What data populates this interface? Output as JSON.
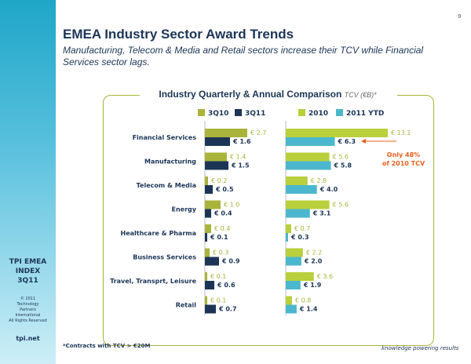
{
  "page_number": "9",
  "title": "EMEA Industry Sector Award Trends",
  "subtitle": "Manufacturing, Telecom & Media and Retail sectors increase their TCV while Financial Services sector lags.",
  "sidebar": {
    "title_lines": [
      "TPI EMEA",
      "INDEX",
      "3Q11"
    ],
    "copyright_lines": [
      "© 2011",
      "Technology",
      "Partners",
      "International",
      "All Rights Reserved"
    ],
    "url": "tpi.net"
  },
  "footnote": "*Contracts with TCV > €20M",
  "tagline": "knowledge powering results",
  "colors": {
    "olive": "#a8b43a",
    "navy": "#1c3557",
    "light_green": "#b9cf3c",
    "cyan": "#4bb7ce"
  },
  "chart_data": [
    {
      "type": "bar",
      "orientation": "horizontal",
      "title": "Industry Quarterly & Annual Comparison",
      "title_unit": "TCV (€B)*",
      "categories": [
        "Financial Services",
        "Manufacturing",
        "Telecom & Media",
        "Energy",
        "Healthcare & Pharma",
        "Business Services",
        "Travel, Transprt, Leisure",
        "Retail"
      ],
      "series": [
        {
          "name": "3Q10",
          "values": [
            2.7,
            1.4,
            0.2,
            1.0,
            0.4,
            0.3,
            0.1,
            0.1
          ],
          "labels": [
            "€ 2.7",
            "€ 1.4",
            "€ 0.2",
            "€ 1.0",
            "€ 0.4",
            "€ 0.3",
            "€ 0.1",
            "€ 0.1"
          ]
        },
        {
          "name": "3Q11",
          "values": [
            1.6,
            1.5,
            0.5,
            0.4,
            0.1,
            0.9,
            0.6,
            0.7
          ],
          "labels": [
            "€ 1.6",
            "€ 1.5",
            "€ 0.5",
            "€ 0.4",
            "€ 0.1",
            "€ 0.9",
            "€ 0.6",
            "€ 0.7"
          ]
        }
      ],
      "legend": "top"
    },
    {
      "type": "bar",
      "orientation": "horizontal",
      "categories": [
        "Financial Services",
        "Manufacturing",
        "Telecom & Media",
        "Energy",
        "Healthcare & Pharma",
        "Business Services",
        "Travel, Transprt, Leisure",
        "Retail"
      ],
      "series": [
        {
          "name": "2010",
          "values": [
            13.1,
            5.6,
            2.8,
            5.6,
            0.7,
            2.2,
            3.6,
            0.8
          ],
          "labels": [
            "€ 13.1",
            "€ 5.6",
            "€ 2.8",
            "€ 5.6",
            "€ 0.7",
            "€ 2.2",
            "€ 3.6",
            "€ 0.8"
          ]
        },
        {
          "name": "2011 YTD",
          "values": [
            6.3,
            5.8,
            4.0,
            3.1,
            0.3,
            2.0,
            1.9,
            1.4
          ],
          "labels": [
            "€ 6.3",
            "€ 5.8",
            "€ 4.0",
            "€ 3.1",
            "€ 0.3",
            "€ 2.0",
            "€ 1.9",
            "€ 1.4"
          ]
        }
      ],
      "annotation": {
        "lines": [
          "Only 48%",
          "of 2010 TCV"
        ]
      },
      "legend": "top"
    }
  ]
}
